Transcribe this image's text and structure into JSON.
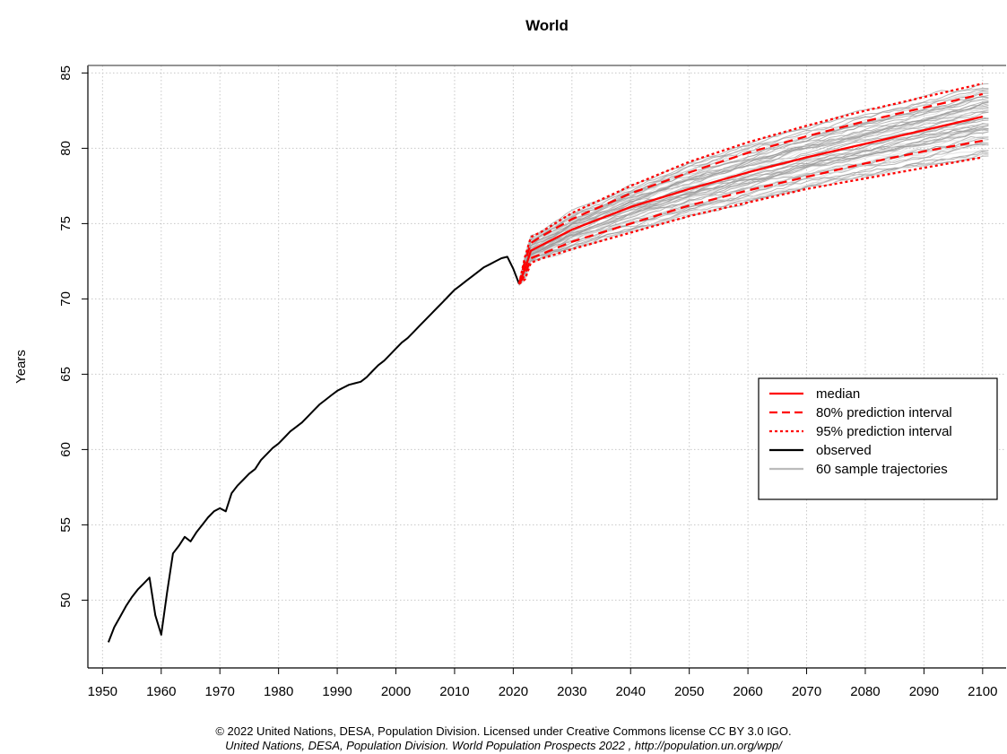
{
  "chart_data": {
    "type": "line",
    "title": "World",
    "xlabel": "",
    "ylabel": "Years",
    "xlim": [
      1947.5,
      2104
    ],
    "ylim": [
      45.5,
      85.5
    ],
    "x_ticks": [
      1950,
      1960,
      1970,
      1980,
      1990,
      2000,
      2010,
      2020,
      2030,
      2040,
      2050,
      2060,
      2070,
      2080,
      2090,
      2100
    ],
    "y_ticks": [
      50,
      55,
      60,
      65,
      70,
      75,
      80,
      85
    ],
    "grid": true,
    "legend_position": "right",
    "legend": [
      {
        "label": "median",
        "color": "#ff0000",
        "style": "solid"
      },
      {
        "label": "80% prediction interval",
        "color": "#ff0000",
        "style": "dashed"
      },
      {
        "label": "95% prediction interval",
        "color": "#ff0000",
        "style": "dotted"
      },
      {
        "label": "observed",
        "color": "#000000",
        "style": "solid"
      },
      {
        "label": "60 sample trajectories",
        "color": "#bbbbbb",
        "style": "solid"
      }
    ],
    "series": [
      {
        "name": "observed",
        "color": "#000000",
        "x": [
          1951,
          1952,
          1953,
          1954,
          1955,
          1956,
          1957,
          1958,
          1959,
          1960,
          1961,
          1962,
          1963,
          1964,
          1965,
          1966,
          1967,
          1968,
          1969,
          1970,
          1971,
          1972,
          1973,
          1974,
          1975,
          1976,
          1977,
          1978,
          1979,
          1980,
          1981,
          1982,
          1983,
          1984,
          1985,
          1986,
          1987,
          1988,
          1989,
          1990,
          1991,
          1992,
          1993,
          1994,
          1995,
          1996,
          1997,
          1998,
          1999,
          2000,
          2001,
          2002,
          2003,
          2004,
          2005,
          2006,
          2007,
          2008,
          2009,
          2010,
          2011,
          2012,
          2013,
          2014,
          2015,
          2016,
          2017,
          2018,
          2019,
          2020,
          2021
        ],
        "values": [
          47.2,
          48.2,
          48.9,
          49.6,
          50.2,
          50.7,
          51.1,
          51.5,
          49.0,
          47.7,
          50.5,
          53.1,
          53.6,
          54.2,
          53.9,
          54.5,
          55.0,
          55.5,
          55.9,
          56.1,
          55.9,
          57.1,
          57.6,
          58.0,
          58.4,
          58.7,
          59.3,
          59.7,
          60.1,
          60.4,
          60.8,
          61.2,
          61.5,
          61.8,
          62.2,
          62.6,
          63.0,
          63.3,
          63.6,
          63.9,
          64.1,
          64.3,
          64.4,
          64.5,
          64.8,
          65.2,
          65.6,
          65.9,
          66.3,
          66.7,
          67.1,
          67.4,
          67.8,
          68.2,
          68.6,
          69.0,
          69.4,
          69.8,
          70.2,
          70.6,
          70.9,
          71.2,
          71.5,
          71.8,
          72.1,
          72.3,
          72.5,
          72.7,
          72.8,
          72.0,
          71.0
        ]
      },
      {
        "name": "median",
        "color": "#ff0000",
        "x": [
          2021,
          2022,
          2023,
          2025,
          2030,
          2040,
          2050,
          2060,
          2070,
          2080,
          2090,
          2100
        ],
        "values": [
          71.0,
          72.0,
          73.2,
          73.6,
          74.6,
          76.1,
          77.3,
          78.4,
          79.4,
          80.3,
          81.2,
          82.1
        ]
      },
      {
        "name": "80% prediction interval upper",
        "color": "#ff0000",
        "x": [
          2021,
          2022,
          2023,
          2025,
          2030,
          2040,
          2050,
          2060,
          2070,
          2080,
          2090,
          2100
        ],
        "values": [
          71.0,
          72.5,
          73.7,
          74.2,
          75.3,
          77.0,
          78.4,
          79.7,
          80.8,
          81.8,
          82.7,
          83.6
        ]
      },
      {
        "name": "80% prediction interval lower",
        "color": "#ff0000",
        "x": [
          2021,
          2022,
          2023,
          2025,
          2030,
          2040,
          2050,
          2060,
          2070,
          2080,
          2090,
          2100
        ],
        "values": [
          71.0,
          71.6,
          72.7,
          73.0,
          73.8,
          75.0,
          76.2,
          77.2,
          78.1,
          79.0,
          79.8,
          80.5
        ]
      },
      {
        "name": "95% prediction interval upper",
        "color": "#ff0000",
        "x": [
          2021,
          2022,
          2023,
          2025,
          2030,
          2040,
          2050,
          2060,
          2070,
          2080,
          2090,
          2100
        ],
        "values": [
          71.0,
          72.8,
          74.1,
          74.5,
          75.7,
          77.5,
          79.1,
          80.4,
          81.5,
          82.5,
          83.4,
          84.3
        ]
      },
      {
        "name": "95% prediction interval lower",
        "color": "#ff0000",
        "x": [
          2021,
          2022,
          2023,
          2025,
          2030,
          2040,
          2050,
          2060,
          2070,
          2080,
          2090,
          2100
        ],
        "values": [
          71.0,
          71.3,
          72.4,
          72.7,
          73.3,
          74.4,
          75.5,
          76.4,
          77.3,
          78.0,
          78.7,
          79.4
        ]
      }
    ],
    "sample_trajectories": {
      "count": 60,
      "color": "#bbbbbb"
    }
  },
  "footer": {
    "line1": "© 2022 United Nations, DESA, Population Division. Licensed under Creative Commons license CC BY 3.0 IGO.",
    "line2": "United Nations, DESA, Population Division. World Population Prospects 2022 , http://population.un.org/wpp/"
  }
}
